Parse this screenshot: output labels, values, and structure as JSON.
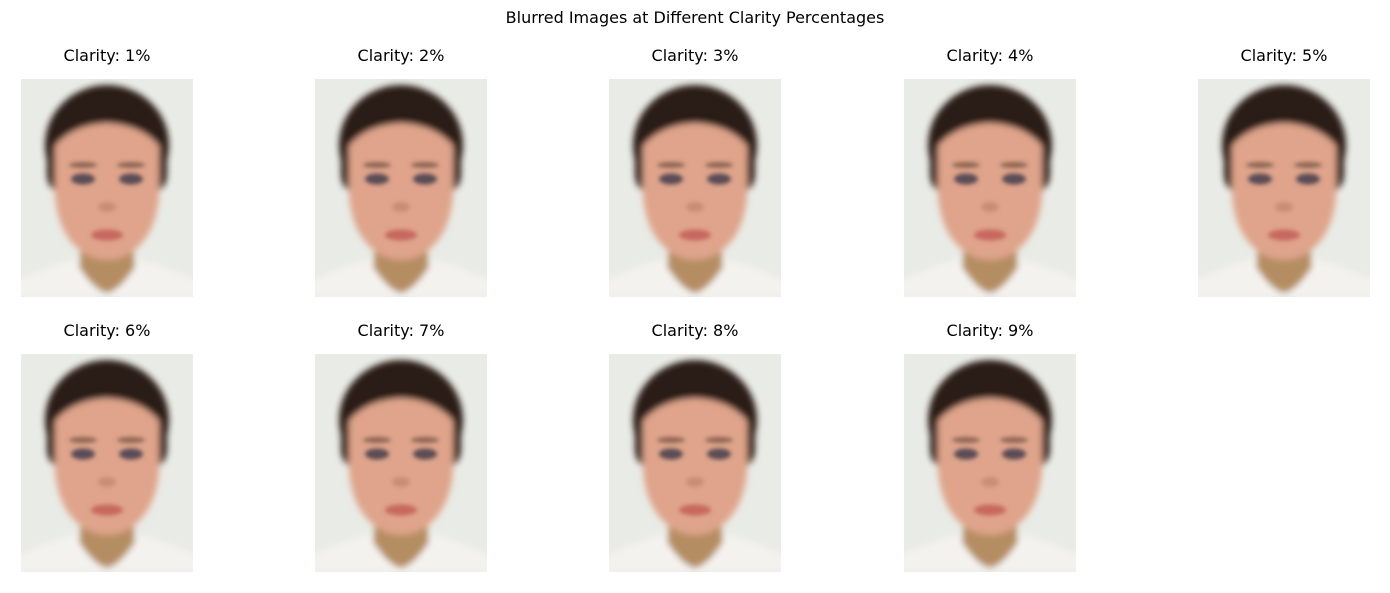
{
  "figure": {
    "title": "Blurred Images at Different Clarity Percentages"
  },
  "panels": [
    {
      "title": "Clarity: 1%",
      "clarity_percent": 1,
      "image": "blurred-face-photo"
    },
    {
      "title": "Clarity: 2%",
      "clarity_percent": 2,
      "image": "blurred-face-photo"
    },
    {
      "title": "Clarity: 3%",
      "clarity_percent": 3,
      "image": "blurred-face-photo"
    },
    {
      "title": "Clarity: 4%",
      "clarity_percent": 4,
      "image": "blurred-face-photo"
    },
    {
      "title": "Clarity: 5%",
      "clarity_percent": 5,
      "image": "blurred-face-photo"
    },
    {
      "title": "Clarity: 6%",
      "clarity_percent": 6,
      "image": "blurred-face-photo"
    },
    {
      "title": "Clarity: 7%",
      "clarity_percent": 7,
      "image": "blurred-face-photo"
    },
    {
      "title": "Clarity: 8%",
      "clarity_percent": 8,
      "image": "blurred-face-photo"
    },
    {
      "title": "Clarity: 9%",
      "clarity_percent": 9,
      "image": "blurred-face-photo"
    }
  ],
  "colors": {
    "background": "#ffffff",
    "photo_background": "#e9ebe6",
    "hair": "#2b1d14",
    "skin": "#dfa48b",
    "lips": "#c7675f",
    "eyes": "#5a4c55",
    "neck": "#b58d62",
    "shirt": "#f4f2ef"
  }
}
